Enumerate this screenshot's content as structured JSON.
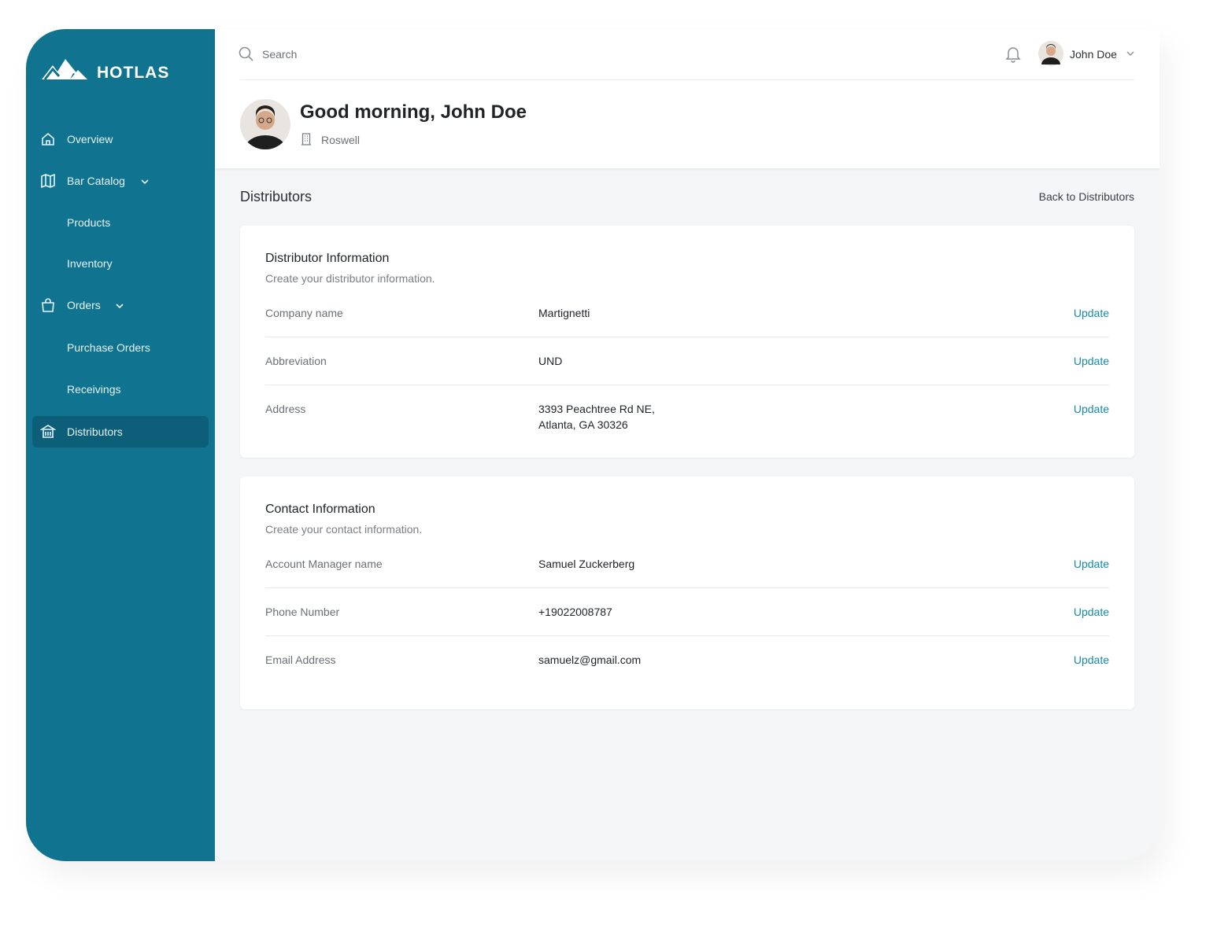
{
  "brand": "HOTLAS",
  "nav": [
    "Overview",
    "Bar Catalog",
    "Products",
    "Inventory",
    "Orders",
    "Purchase Orders",
    "Receivings",
    "Distributors"
  ],
  "header": {
    "search": "Search",
    "user": "John Doe",
    "greeting": "Good morning, John Doe",
    "location": "Roswell"
  },
  "page": {
    "title": "Distributors",
    "back_link": "Back to Distributors"
  },
  "sections": [
    {
      "title": "Distributor Information",
      "subtitle": "Create your distributor information.",
      "rows": [
        {
          "label": "Company name",
          "value": [
            "Martignetti"
          ],
          "action": "Update"
        },
        {
          "label": "Abbreviation",
          "value": [
            "UND"
          ],
          "action": "Update"
        },
        {
          "label": "Address",
          "value": [
            "3393 Peachtree Rd NE,",
            "Atlanta, GA 30326"
          ],
          "action": "Update"
        }
      ]
    },
    {
      "title": "Contact Information",
      "subtitle": "Create your contact information.",
      "rows": [
        {
          "label": "Account Manager name",
          "value": [
            "Samuel Zuckerberg"
          ],
          "action": "Update"
        },
        {
          "label": "Phone Number",
          "value": [
            "+19022008787"
          ],
          "action": "Update"
        },
        {
          "label": "Email Address",
          "value": [
            "samuelz@gmail.com"
          ],
          "action": "Update"
        }
      ]
    }
  ]
}
